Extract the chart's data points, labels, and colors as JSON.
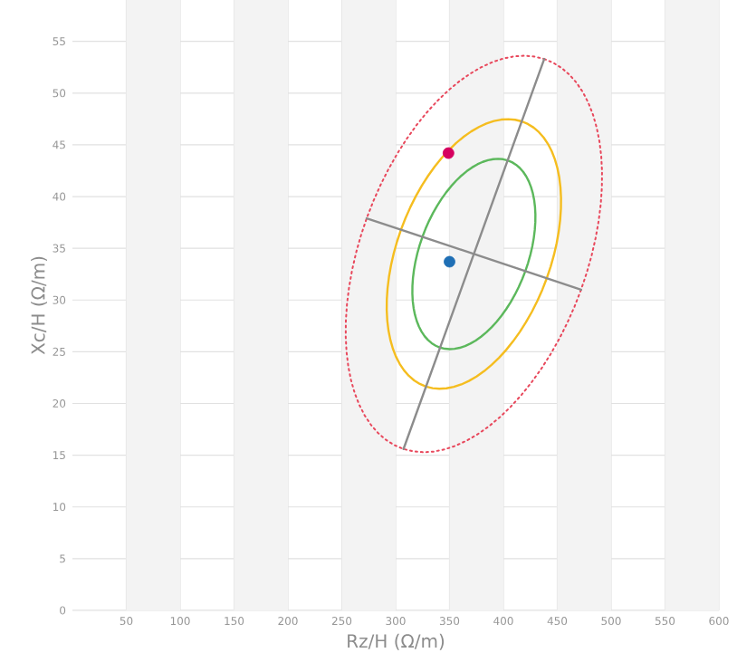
{
  "chart_data": {
    "type": "line",
    "xlabel": "Rz/H (Ω/m)",
    "ylabel": "Xc/H (Ω/m)",
    "xlim": [
      0,
      600
    ],
    "ylim": [
      0,
      59
    ],
    "xticks": [
      50,
      100,
      150,
      200,
      250,
      300,
      350,
      400,
      450,
      500,
      550,
      600
    ],
    "yticks": [
      0,
      5,
      10,
      15,
      20,
      25,
      30,
      35,
      40,
      45,
      50,
      55
    ],
    "grid": true,
    "legend": false,
    "marker": "none",
    "bands": [
      {
        "axis": "x",
        "from": 50,
        "to": 100,
        "color": "#f3f3f3"
      },
      {
        "axis": "x",
        "from": 150,
        "to": 200,
        "color": "#f3f3f3"
      },
      {
        "axis": "x",
        "from": 250,
        "to": 300,
        "color": "#f3f3f3"
      },
      {
        "axis": "x",
        "from": 350,
        "to": 400,
        "color": "#f3f3f3"
      },
      {
        "axis": "x",
        "from": 450,
        "to": 500,
        "color": "#f3f3f3"
      },
      {
        "axis": "x",
        "from": 550,
        "to": 600,
        "color": "#f3f3f3"
      }
    ],
    "series": [
      {
        "type": "line",
        "color": "#8c8c8c",
        "line_style": "solid",
        "x": [
          307.3,
          437.9
        ],
        "values": [
          15.6,
          53.3
        ]
      },
      {
        "type": "line",
        "color": "#8c8c8c",
        "line_style": "solid",
        "x": [
          273.1,
          472.1
        ],
        "values": [
          37.9,
          31.0
        ]
      },
      {
        "type": "scatter",
        "color": "#d6005f",
        "marker": "circle",
        "x": [
          349
        ],
        "values": [
          44.2
        ]
      },
      {
        "type": "scatter",
        "color": "#1f6fb5",
        "marker": "circle",
        "x": [
          350
        ],
        "values": [
          33.7
        ]
      }
    ]
  }
}
